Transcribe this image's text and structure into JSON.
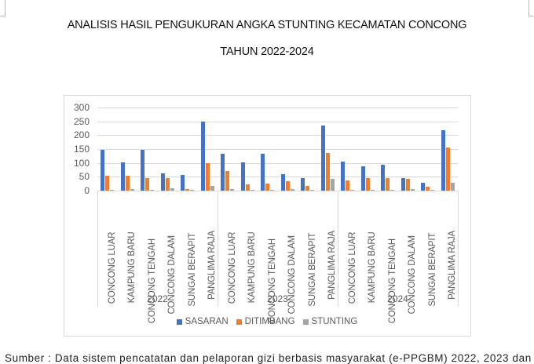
{
  "document": {
    "title_line1": "ANALISIS HASIL PENGUKURAN ANGKA STUNTING KECAMATAN CONCONG",
    "title_line2": "TAHUN 2022-2024",
    "source_text": "Sumber : Data sistem pencatatan dan pelaporan gizi berbasis masyarakat (e-PPGBM) 2022, 2023 dan"
  },
  "legend": [
    {
      "label": "SASARAN",
      "color": "#4472c4"
    },
    {
      "label": "DITIMBANG",
      "color": "#ed7d31"
    },
    {
      "label": "STUNTING",
      "color": "#a5a5a5"
    }
  ],
  "chart_data": {
    "type": "bar",
    "title": "ANALISIS HASIL PENGUKURAN ANGKA STUNTING KECAMATAN CONCONG TAHUN 2022-2024",
    "xlabel": "",
    "ylabel": "",
    "ylim": [
      0,
      300
    ],
    "yticks": [
      0,
      50,
      100,
      150,
      200,
      250,
      300
    ],
    "grid": true,
    "legend_position": "bottom",
    "groups": [
      "2022",
      "2023",
      "2024"
    ],
    "categories": [
      "CONCONG LUAR",
      "KAMPUNG BARU",
      "CONCONG TENGAH",
      "CONCONG DALAM",
      "SUNGAI BERAPIT",
      "PANGLIMA RAJA",
      "CONCONG LUAR",
      "KAMPUNG BARU",
      "CONCONG TENGAH",
      "CONCONG DALAM",
      "SUNGAI BERAPIT",
      "PANGLIMA RAJA",
      "CONCONG LUAR",
      "KAMPUNG BARU",
      "CONCONG TENGAH",
      "CONCONG DALAM",
      "SUNGAI BERAPIT",
      "PANGLIMA RAJA"
    ],
    "series": [
      {
        "name": "SASARAN",
        "color": "#4472c4",
        "values": [
          148,
          103,
          147,
          62,
          57,
          250,
          133,
          102,
          134,
          59,
          45,
          235,
          106,
          87,
          94,
          45,
          28,
          218
        ]
      },
      {
        "name": "DITIMBANG",
        "color": "#ed7d31",
        "values": [
          55,
          55,
          44,
          44,
          5,
          100,
          70,
          24,
          25,
          35,
          18,
          136,
          38,
          45,
          45,
          43,
          15,
          155
        ]
      },
      {
        "name": "STUNTING",
        "color": "#a5a5a5",
        "values": [
          3,
          5,
          2,
          8,
          1,
          17,
          7,
          2,
          3,
          6,
          4,
          43,
          4,
          1,
          3,
          6,
          2,
          28
        ]
      }
    ]
  }
}
